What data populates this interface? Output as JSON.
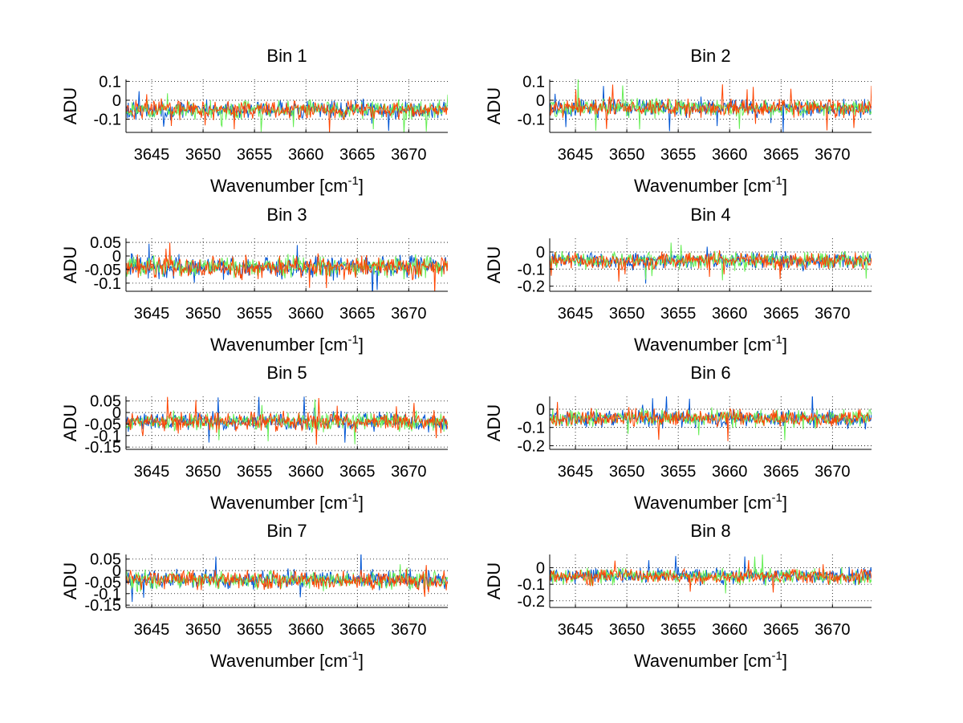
{
  "chart_data": {
    "type": "line",
    "x_axis_label_parts": [
      "Wavenumber [cm",
      "-1",
      "]"
    ],
    "y_axis_label": "ADU",
    "xlim": [
      3642.5,
      3673.8
    ],
    "x_ticks": [
      3645,
      3650,
      3655,
      3660,
      3665,
      3670
    ],
    "x_tick_labels": [
      "3645",
      "3650",
      "3655",
      "3660",
      "3665",
      "3670"
    ],
    "grid": true,
    "series_colors": [
      "#0055d4",
      "#66ee55",
      "#ff4400"
    ],
    "panels": [
      {
        "title": "Bin 1",
        "ylim": [
          -0.17,
          0.11
        ],
        "y_ticks": [
          -0.1,
          0,
          0.1
        ],
        "y_tick_labels": [
          "-0.1",
          "0",
          "0.1"
        ],
        "baseline": -0.05,
        "noise": 0.03
      },
      {
        "title": "Bin 2",
        "ylim": [
          -0.17,
          0.11
        ],
        "y_ticks": [
          -0.1,
          0,
          0.1
        ],
        "y_tick_labels": [
          "-0.1",
          "0",
          "0.1"
        ],
        "baseline": -0.04,
        "noise": 0.03
      },
      {
        "title": "Bin 3",
        "ylim": [
          -0.13,
          0.065
        ],
        "y_ticks": [
          -0.1,
          -0.05,
          0,
          0.05
        ],
        "y_tick_labels": [
          "-0.1",
          "-0.05",
          "0",
          "0.05"
        ],
        "baseline": -0.04,
        "noise": 0.025
      },
      {
        "title": "Bin 4",
        "ylim": [
          -0.23,
          0.08
        ],
        "y_ticks": [
          -0.2,
          -0.1,
          0
        ],
        "y_tick_labels": [
          "-0.2",
          "-0.1",
          "0"
        ],
        "baseline": -0.05,
        "noise": 0.03
      },
      {
        "title": "Bin 5",
        "ylim": [
          -0.16,
          0.07
        ],
        "y_ticks": [
          -0.15,
          -0.1,
          -0.05,
          0,
          0.05
        ],
        "y_tick_labels": [
          "-0.15",
          "-0.1",
          "-0.05",
          "0",
          "0.05"
        ],
        "baseline": -0.04,
        "noise": 0.025
      },
      {
        "title": "Bin 6",
        "ylim": [
          -0.22,
          0.07
        ],
        "y_ticks": [
          -0.2,
          -0.1,
          0
        ],
        "y_tick_labels": [
          "-0.2",
          "-0.1",
          "0"
        ],
        "baseline": -0.05,
        "noise": 0.03
      },
      {
        "title": "Bin 7",
        "ylim": [
          -0.16,
          0.07
        ],
        "y_ticks": [
          -0.15,
          -0.1,
          -0.05,
          0,
          0.05
        ],
        "y_tick_labels": [
          "-0.15",
          "-0.1",
          "-0.05",
          "0",
          "0.05"
        ],
        "baseline": -0.04,
        "noise": 0.025
      },
      {
        "title": "Bin 8",
        "ylim": [
          -0.24,
          0.08
        ],
        "y_ticks": [
          -0.2,
          -0.1,
          0
        ],
        "y_tick_labels": [
          "-0.2",
          "-0.1",
          "0"
        ],
        "baseline": -0.05,
        "noise": 0.03
      }
    ]
  }
}
